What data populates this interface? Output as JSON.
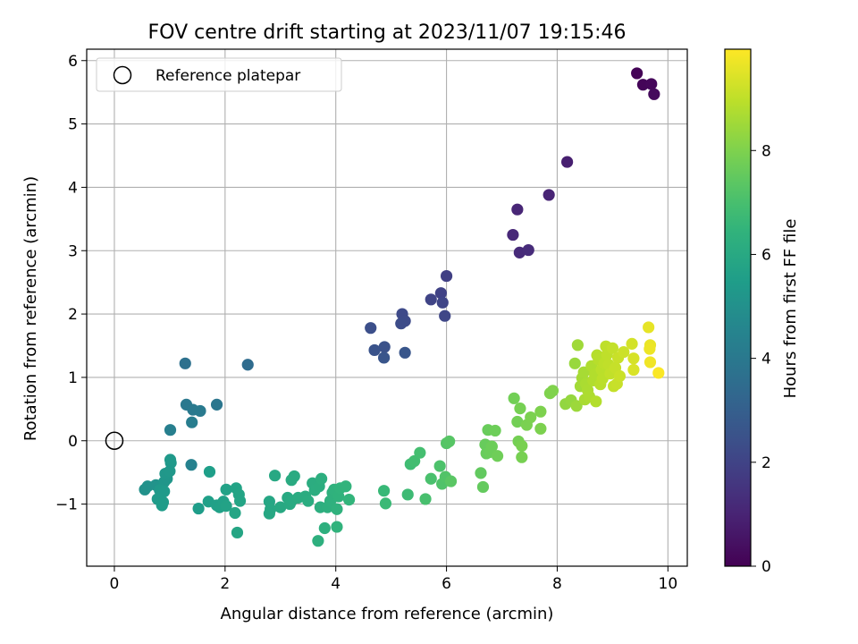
{
  "chart_data": {
    "type": "scatter",
    "title": "FOV centre drift starting at 2023/11/07 19:15:46",
    "xlabel": "Angular distance from reference (arcmin)",
    "ylabel": "Rotation from reference (arcmin)",
    "xlim": [
      -0.5,
      10.35
    ],
    "ylim": [
      -1.98,
      6.18
    ],
    "xticks": [
      0,
      2,
      4,
      6,
      8,
      10
    ],
    "xtick_labels": [
      "0",
      "2",
      "4",
      "6",
      "8",
      "10"
    ],
    "yticks": [
      -1,
      0,
      1,
      2,
      3,
      4,
      5,
      6
    ],
    "ytick_labels": [
      "−1",
      "0",
      "1",
      "2",
      "3",
      "4",
      "5",
      "6"
    ],
    "grid": true,
    "legend": {
      "placement": "top-left",
      "entries": [
        "Reference platepar"
      ]
    },
    "reference_point": {
      "x": 0,
      "y": 0,
      "label": "Reference platepar",
      "marker": "open-circle"
    },
    "colorbar": {
      "label": "Hours from first FF file",
      "range": [
        0,
        9.95
      ],
      "ticks": [
        0,
        2,
        4,
        6,
        8
      ],
      "tick_labels": [
        "0",
        "2",
        "4",
        "6",
        "8"
      ],
      "colormap": "viridis"
    },
    "points": [
      [
        9.44,
        5.8,
        0.05
      ],
      [
        9.55,
        5.62,
        0.12
      ],
      [
        9.7,
        5.63,
        0.18
      ],
      [
        9.75,
        5.47,
        0.25
      ],
      [
        8.18,
        4.4,
        0.85
      ],
      [
        7.85,
        3.88,
        1.0
      ],
      [
        7.28,
        3.65,
        1.05
      ],
      [
        7.2,
        3.25,
        1.12
      ],
      [
        7.32,
        2.97,
        1.18
      ],
      [
        7.48,
        3.01,
        1.22
      ],
      [
        6.0,
        2.6,
        1.9
      ],
      [
        5.9,
        2.33,
        1.95
      ],
      [
        5.72,
        2.23,
        2.0
      ],
      [
        5.93,
        2.18,
        2.05
      ],
      [
        5.97,
        1.97,
        2.1
      ],
      [
        5.2,
        2.0,
        2.2
      ],
      [
        5.25,
        1.89,
        2.25
      ],
      [
        5.18,
        1.85,
        2.3
      ],
      [
        4.63,
        1.78,
        2.4
      ],
      [
        4.88,
        1.48,
        2.5
      ],
      [
        4.7,
        1.43,
        2.55
      ],
      [
        4.87,
        1.31,
        2.6
      ],
      [
        5.25,
        1.39,
        2.65
      ],
      [
        2.41,
        1.2,
        3.5
      ],
      [
        1.28,
        1.22,
        3.7
      ],
      [
        1.85,
        0.57,
        3.9
      ],
      [
        1.3,
        0.57,
        4.0
      ],
      [
        1.42,
        0.49,
        4.05
      ],
      [
        1.55,
        0.47,
        4.1
      ],
      [
        1.4,
        0.29,
        4.2
      ],
      [
        1.01,
        0.17,
        4.3
      ],
      [
        1.39,
        -0.38,
        4.4
      ],
      [
        0.55,
        -0.77,
        5.0
      ],
      [
        0.6,
        -0.72,
        5.05
      ],
      [
        0.75,
        -0.7,
        5.1
      ],
      [
        0.83,
        -0.72,
        5.15
      ],
      [
        0.9,
        -0.65,
        5.2
      ],
      [
        0.95,
        -0.6,
        5.22
      ],
      [
        0.92,
        -0.52,
        5.25
      ],
      [
        1.0,
        -0.48,
        5.28
      ],
      [
        1.02,
        -0.35,
        5.3
      ],
      [
        1.01,
        -0.3,
        5.32
      ],
      [
        0.82,
        -0.78,
        5.35
      ],
      [
        0.9,
        -0.8,
        5.38
      ],
      [
        0.78,
        -0.92,
        5.4
      ],
      [
        0.88,
        -0.97,
        5.42
      ],
      [
        0.86,
        -1.02,
        5.45
      ],
      [
        1.52,
        -1.07,
        5.5
      ],
      [
        1.72,
        -0.49,
        5.55
      ],
      [
        1.7,
        -0.96,
        5.6
      ],
      [
        1.85,
        -1.02,
        5.62
      ],
      [
        1.9,
        -1.05,
        5.65
      ],
      [
        1.97,
        -0.96,
        5.68
      ],
      [
        2.02,
        -0.77,
        5.7
      ],
      [
        2.02,
        -1.03,
        5.72
      ],
      [
        2.2,
        -0.75,
        5.75
      ],
      [
        2.25,
        -0.85,
        5.78
      ],
      [
        2.27,
        -0.95,
        5.8
      ],
      [
        2.18,
        -1.14,
        5.82
      ],
      [
        2.22,
        -1.45,
        5.85
      ],
      [
        2.8,
        -0.96,
        5.9
      ],
      [
        2.82,
        -1.08,
        5.92
      ],
      [
        2.8,
        -1.15,
        5.94
      ],
      [
        2.9,
        -0.55,
        5.96
      ],
      [
        3.0,
        -1.05,
        5.98
      ],
      [
        3.13,
        -0.9,
        6.0
      ],
      [
        3.17,
        -1.0,
        6.02
      ],
      [
        3.2,
        -0.95,
        6.04
      ],
      [
        3.2,
        -0.62,
        6.06
      ],
      [
        3.25,
        -0.56,
        6.08
      ],
      [
        3.32,
        -0.9,
        6.1
      ],
      [
        3.45,
        -0.88,
        6.12
      ],
      [
        3.5,
        -0.95,
        6.14
      ],
      [
        3.58,
        -0.67,
        6.16
      ],
      [
        3.62,
        -0.78,
        6.18
      ],
      [
        3.7,
        -0.72,
        6.2
      ],
      [
        3.74,
        -0.6,
        6.22
      ],
      [
        3.72,
        -1.05,
        6.24
      ],
      [
        3.68,
        -1.58,
        6.26
      ],
      [
        3.8,
        -1.38,
        6.28
      ],
      [
        3.85,
        -1.05,
        6.3
      ],
      [
        3.9,
        -0.95,
        6.32
      ],
      [
        3.94,
        -0.82,
        6.34
      ],
      [
        3.97,
        -0.77,
        6.36
      ],
      [
        4.02,
        -1.08,
        6.38
      ],
      [
        4.05,
        -0.88,
        6.4
      ],
      [
        4.02,
        -1.36,
        6.42
      ],
      [
        4.08,
        -0.75,
        6.44
      ],
      [
        4.18,
        -0.72,
        6.46
      ],
      [
        4.24,
        -0.93,
        6.48
      ],
      [
        4.87,
        -0.79,
        6.7
      ],
      [
        4.9,
        -0.99,
        6.75
      ],
      [
        5.3,
        -0.85,
        6.8
      ],
      [
        5.35,
        -0.37,
        6.85
      ],
      [
        5.42,
        -0.32,
        6.9
      ],
      [
        5.52,
        -0.19,
        6.95
      ],
      [
        5.62,
        -0.92,
        7.0
      ],
      [
        5.72,
        -0.6,
        7.05
      ],
      [
        5.88,
        -0.4,
        7.1
      ],
      [
        5.92,
        -0.68,
        7.15
      ],
      [
        5.98,
        -0.57,
        7.2
      ],
      [
        6.0,
        -0.04,
        7.25
      ],
      [
        6.05,
        -0.01,
        7.3
      ],
      [
        6.08,
        -0.64,
        7.35
      ],
      [
        6.62,
        -0.51,
        7.5
      ],
      [
        6.66,
        -0.73,
        7.55
      ],
      [
        6.7,
        -0.06,
        7.6
      ],
      [
        6.72,
        -0.2,
        7.62
      ],
      [
        6.75,
        0.17,
        7.65
      ],
      [
        6.78,
        -0.18,
        7.68
      ],
      [
        6.82,
        -0.09,
        7.7
      ],
      [
        6.88,
        0.16,
        7.72
      ],
      [
        6.92,
        -0.24,
        7.75
      ],
      [
        7.22,
        0.67,
        7.8
      ],
      [
        7.28,
        0.3,
        7.82
      ],
      [
        7.3,
        -0.01,
        7.84
      ],
      [
        7.33,
        0.51,
        7.86
      ],
      [
        7.36,
        -0.26,
        7.88
      ],
      [
        7.36,
        -0.08,
        7.9
      ],
      [
        7.45,
        0.25,
        7.92
      ],
      [
        7.52,
        0.37,
        7.94
      ],
      [
        7.7,
        0.19,
        7.96
      ],
      [
        7.7,
        0.46,
        7.98
      ],
      [
        7.87,
        0.75,
        8.0
      ],
      [
        7.92,
        0.79,
        8.02
      ],
      [
        8.15,
        0.58,
        8.3
      ],
      [
        8.25,
        0.64,
        8.35
      ],
      [
        8.32,
        1.22,
        8.4
      ],
      [
        8.35,
        0.55,
        8.45
      ],
      [
        8.37,
        1.51,
        8.5
      ],
      [
        8.42,
        0.86,
        8.55
      ],
      [
        8.45,
        0.99,
        8.6
      ],
      [
        8.48,
        1.08,
        8.62
      ],
      [
        8.5,
        0.65,
        8.65
      ],
      [
        8.52,
        0.9,
        8.68
      ],
      [
        8.55,
        0.8,
        8.7
      ],
      [
        8.58,
        0.7,
        8.72
      ],
      [
        8.62,
        1.18,
        8.75
      ],
      [
        8.65,
        0.95,
        8.78
      ],
      [
        8.68,
        1.05,
        8.8
      ],
      [
        8.7,
        0.62,
        8.82
      ],
      [
        8.72,
        1.35,
        8.85
      ],
      [
        8.75,
        1.28,
        8.88
      ],
      [
        8.78,
        0.89,
        8.9
      ],
      [
        8.8,
        1.12,
        8.92
      ],
      [
        8.82,
        0.98,
        8.94
      ],
      [
        8.85,
        1.22,
        8.96
      ],
      [
        8.88,
        1.49,
        8.98
      ],
      [
        8.9,
        1.36,
        9.0
      ],
      [
        8.93,
        1.2,
        9.02
      ],
      [
        8.96,
        1.06,
        9.04
      ],
      [
        9.0,
        1.46,
        9.06
      ],
      [
        9.02,
        0.86,
        9.08
      ],
      [
        9.05,
        1.15,
        9.1
      ],
      [
        9.08,
        0.9,
        9.12
      ],
      [
        9.1,
        1.31,
        9.14
      ],
      [
        9.13,
        1.02,
        9.16
      ],
      [
        9.2,
        1.4,
        9.2
      ],
      [
        9.35,
        1.53,
        9.3
      ],
      [
        9.38,
        1.3,
        9.35
      ],
      [
        9.38,
        1.12,
        9.4
      ],
      [
        9.65,
        1.79,
        9.6
      ],
      [
        9.68,
        1.51,
        9.65
      ],
      [
        9.67,
        1.45,
        9.7
      ],
      [
        9.68,
        1.24,
        9.75
      ],
      [
        9.83,
        1.07,
        9.9
      ]
    ]
  }
}
